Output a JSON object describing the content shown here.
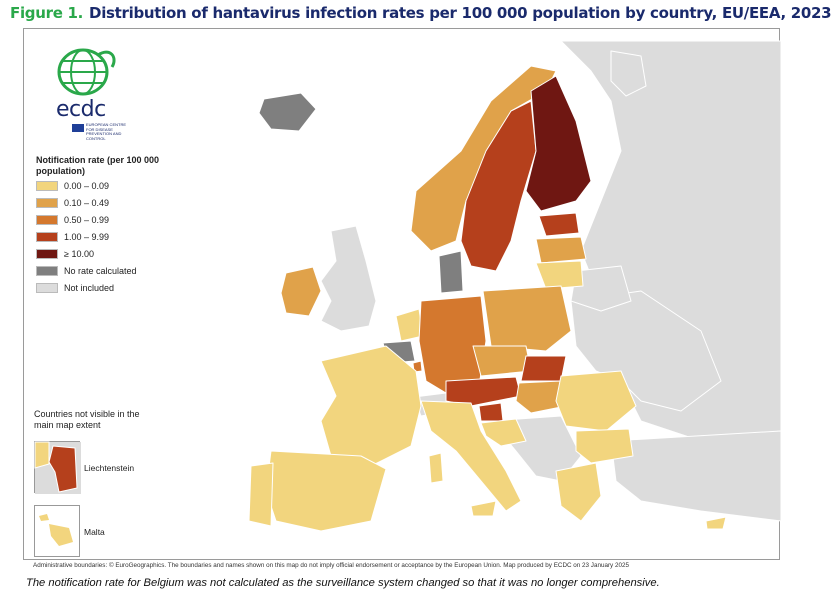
{
  "header": {
    "figure_label": "Figure 1.",
    "title": "Distribution of hantavirus infection rates per 100 000 population by country, EU/EEA, 2023"
  },
  "logo": {
    "text": "ecdc",
    "subtitle": "EUROPEAN CENTRE FOR DISEASE PREVENTION AND CONTROL"
  },
  "legend": {
    "title": "Notification rate (per 100 000 population)",
    "items": [
      {
        "label": "0.00 – 0.09",
        "color": "#f2d57e"
      },
      {
        "label": "0.10 – 0.49",
        "color": "#e0a24a"
      },
      {
        "label": "0.50 – 0.99",
        "color": "#d4782e"
      },
      {
        "label": "1.00 – 9.99",
        "color": "#b5401c"
      },
      {
        "label": "≥ 10.00",
        "color": "#6f1712"
      },
      {
        "label": "No rate calculated",
        "color": "#7f7f7f"
      },
      {
        "label": "Not included",
        "color": "#dcdcdc"
      }
    ]
  },
  "insets": {
    "title": "Countries not visible in the main map extent",
    "liechtenstein": "Liechtenstein",
    "malta": "Malta"
  },
  "attribution": "Administrative boundaries: © EuroGeographics. The boundaries and names shown on this map do not imply official endorsement or acceptance by the European Union. Map produced by ECDC on 23 January 2025",
  "footnote": "The notification rate for Belgium was not calculated as the surveillance system changed so that it was no longer comprehensive.",
  "colors": {
    "sea": "#ffffff",
    "border": "#ffffff",
    "non_eu": "#dcdcdc"
  }
}
